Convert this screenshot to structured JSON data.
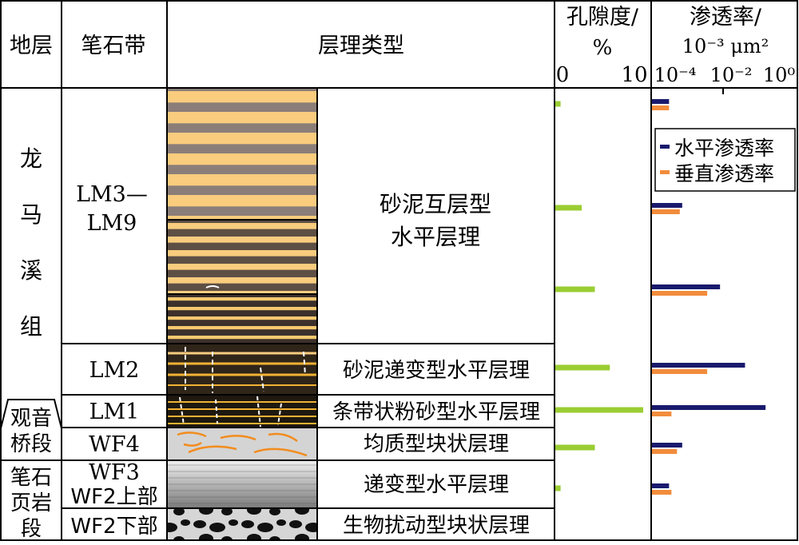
{
  "headers": {
    "strata": "地层",
    "graptolite_zone": "笔石带",
    "lamination_type": "层理类型",
    "porosity_line1": "孔隙度/",
    "porosity_line2": "%",
    "porosity_min": "0",
    "porosity_max": "10",
    "permeability_line1": "渗透率/",
    "permeability_unit": "10⁻³ μm²",
    "perm_tick_1": "10⁻⁴",
    "perm_tick_2": "10⁻²",
    "perm_tick_3": "10⁰"
  },
  "formations": {
    "longmaxi": [
      "龙",
      "马",
      "溪",
      "组"
    ],
    "guanyinqiao": [
      "观音",
      "桥段"
    ],
    "graptolite_shale": [
      "笔石",
      "页岩",
      "段"
    ]
  },
  "zones": {
    "lm3_9_line1": "LM3—",
    "lm3_9_line2": "LM9",
    "lm2": "LM2",
    "lm1": "LM1",
    "wf4": "WF4",
    "wf3": "WF3",
    "wf2_upper": "WF2上部",
    "wf2_lower": "WF2下部"
  },
  "lamination": {
    "interbedded_line1": "砂泥互层型",
    "interbedded_line2": "水平层理",
    "graded_sand_mud": "砂泥递变型水平层理",
    "banded_silt": "条带状粉砂型水平层理",
    "homogeneous_massive": "均质型块状层理",
    "graded_horizontal": "递变型水平层理",
    "bioturbated_massive": "生物扰动型块状层理"
  },
  "legend": {
    "horizontal": "水平渗透率",
    "vertical": "垂直渗透率"
  },
  "colors": {
    "porosity": "#9ACD32",
    "horizontal_perm": "#1a1a6e",
    "vertical_perm": "#F28C3C",
    "sand": "#F9CC7E",
    "mud_grey": "#8B7E79",
    "mud_dark": "#3B302B"
  },
  "chart_data": {
    "type": "bar",
    "porosity": {
      "axis": [
        0,
        10
      ],
      "values": [
        0.6,
        3.0,
        4.5,
        6.2,
        10.0,
        4.5,
        0.6
      ]
    },
    "permeability": {
      "scale": "log",
      "axis": [
        0.0001,
        1
      ],
      "series": [
        {
          "name": "水平渗透率",
          "values": [
            0.0003,
            0.0007,
            0.008,
            0.04,
            0.15,
            0.0007,
            0.0003
          ]
        },
        {
          "name": "垂直渗透率",
          "values": [
            0.0003,
            0.0006,
            0.0035,
            0.0035,
            0.00035,
            0.0005,
            0.00035
          ]
        }
      ]
    }
  }
}
